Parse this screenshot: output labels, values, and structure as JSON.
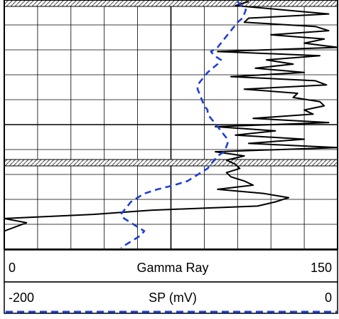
{
  "chart_data": {
    "type": "line",
    "title": "",
    "grid": true,
    "tracks": [
      {
        "name": "Gamma Ray",
        "scale_min": "0",
        "scale_max": "150",
        "xlim": [
          0,
          150
        ],
        "line_color": "#000000",
        "line_style": "solid"
      },
      {
        "name": "SP (mV)",
        "scale_min": "-200",
        "scale_max": "0",
        "xlim": [
          -200,
          0
        ],
        "line_color": "#1f3fd6",
        "line_style": "dashed"
      }
    ],
    "depth_points": 60,
    "series": [
      {
        "name": "Gamma Ray",
        "values": [
          110,
          104,
          125,
          146,
          110,
          108,
          140,
          146,
          120,
          144,
          135,
          150,
          96,
          142,
          118,
          130,
          113,
          135,
          102,
          140,
          145,
          108,
          132,
          130,
          142,
          144,
          135,
          139,
          112,
          146,
          95,
          122,
          104,
          135,
          110,
          150,
          95,
          108,
          100,
          104,
          106,
          100,
          102,
          108,
          112,
          96,
          117,
          128,
          122,
          114,
          66,
          40,
          0,
          10,
          5,
          0,
          0,
          0,
          0,
          0
        ]
      },
      {
        "name": "SP (mV)",
        "values": [
          -60,
          -58,
          -55,
          -56,
          -57,
          -60,
          -62,
          -64,
          -66,
          -68,
          -70,
          -72,
          -76,
          -74,
          -70,
          -72,
          -75,
          -78,
          -80,
          -82,
          -84,
          -84,
          -83,
          -82,
          -81,
          -80,
          -78,
          -78,
          -76,
          -74,
          -72,
          -70,
          -68,
          -66,
          -66,
          -67,
          -68,
          -72,
          -74,
          -76,
          -78,
          -82,
          -86,
          -90,
          -98,
          -108,
          -116,
          -120,
          -124,
          -126,
          -128,
          -130,
          -128,
          -124,
          -120,
          -116,
          -118,
          -122,
          -126,
          -130
        ]
      }
    ]
  }
}
